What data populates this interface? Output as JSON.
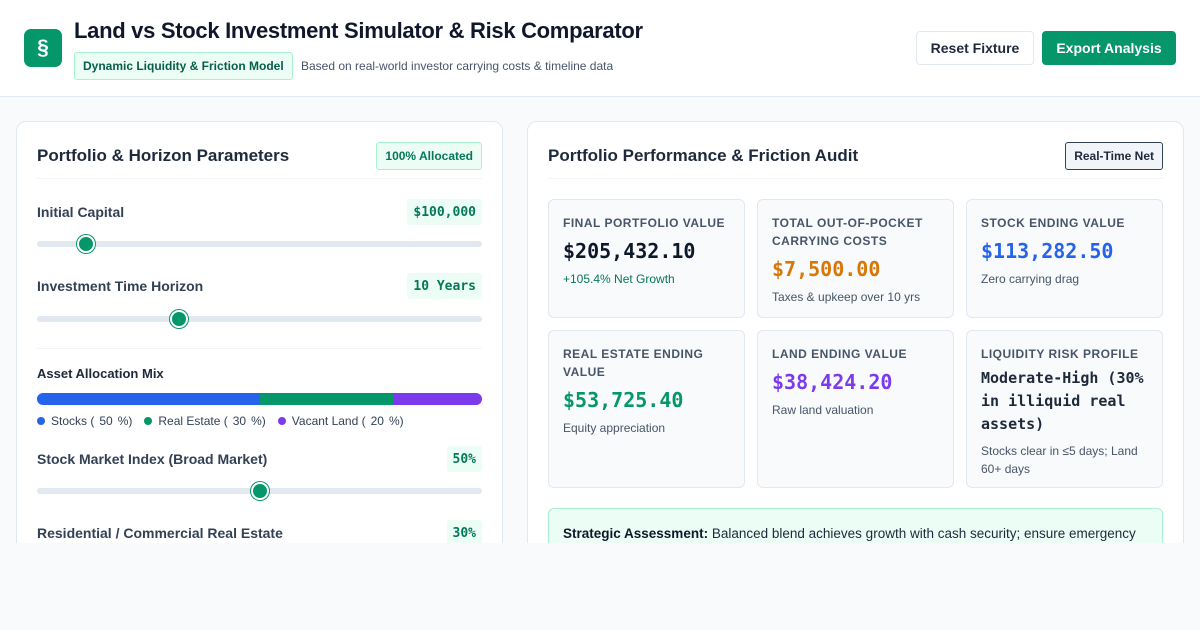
{
  "header": {
    "logo_glyph": "§",
    "title": "Land vs Stock Investment Simulator & Risk Comparator",
    "model_badge": "Dynamic Liquidity & Friction Model",
    "subtitle": "Based on real-world investor carrying costs & timeline data",
    "reset_label": "Reset Fixture",
    "export_label": "Export Analysis"
  },
  "left_panel": {
    "title": "Portfolio & Horizon Parameters",
    "allocation_badge": "100% Allocated",
    "initial_capital": {
      "label": "Initial Capital",
      "value": "$100,000",
      "slider_fraction": 0.11
    },
    "time_horizon": {
      "label": "Investment Time Horizon",
      "value": "10 Years",
      "slider_fraction": 0.32
    },
    "mix": {
      "title": "Asset Allocation Mix",
      "segments": [
        {
          "name": "Stocks",
          "percent": 50,
          "color": "#2563eb"
        },
        {
          "name": "Real Estate",
          "percent": 30,
          "color": "#059669"
        },
        {
          "name": "Vacant Land",
          "percent": 20,
          "color": "#7c3aed"
        }
      ],
      "legend": [
        {
          "prefix": "Stocks (",
          "percent": "50",
          "suffix": "%)"
        },
        {
          "prefix": "Real Estate (",
          "percent": "30",
          "suffix": "%)"
        },
        {
          "prefix": "Vacant Land (",
          "percent": "20",
          "suffix": "%)"
        }
      ]
    },
    "stock_index": {
      "label": "Stock Market Index (Broad Market)",
      "value": "50%",
      "slider_fraction": 0.5
    },
    "real_estate": {
      "label": "Residential / Commercial Real Estate",
      "value": "30%"
    }
  },
  "right_panel": {
    "title": "Portfolio Performance & Friction Audit",
    "net_badge": "Real-Time Net",
    "cards": {
      "final": {
        "label": "Final Portfolio Value",
        "value": "$205,432.10",
        "note": "+105.4% Net Growth",
        "color": "#0f172a"
      },
      "carrying": {
        "label": "Total Out-of-Pocket Carrying Costs",
        "value": "$7,500.00",
        "note": "Taxes & upkeep over 10 yrs",
        "color": "#d97706"
      },
      "stock": {
        "label": "Stock Ending Value",
        "value": "$113,282.50",
        "note": "Zero carrying drag",
        "color": "#2563eb"
      },
      "real_estate": {
        "label": "Real Estate Ending Value",
        "value": "$53,725.40",
        "note": "Equity appreciation",
        "color": "#059669"
      },
      "land": {
        "label": "Land Ending Value",
        "value": "$38,424.20",
        "note": "Raw land valuation",
        "color": "#7c3aed"
      },
      "liquidity": {
        "label": "Liquidity Risk Profile",
        "value": "Moderate-High (30% in illiquid real assets)",
        "note": "Stocks clear in ≤5 days; Land 60+ days"
      }
    },
    "assessment": {
      "heading": "Strategic Assessment:",
      "text": "Balanced blend achieves growth with cash security; ensure emergency"
    }
  }
}
